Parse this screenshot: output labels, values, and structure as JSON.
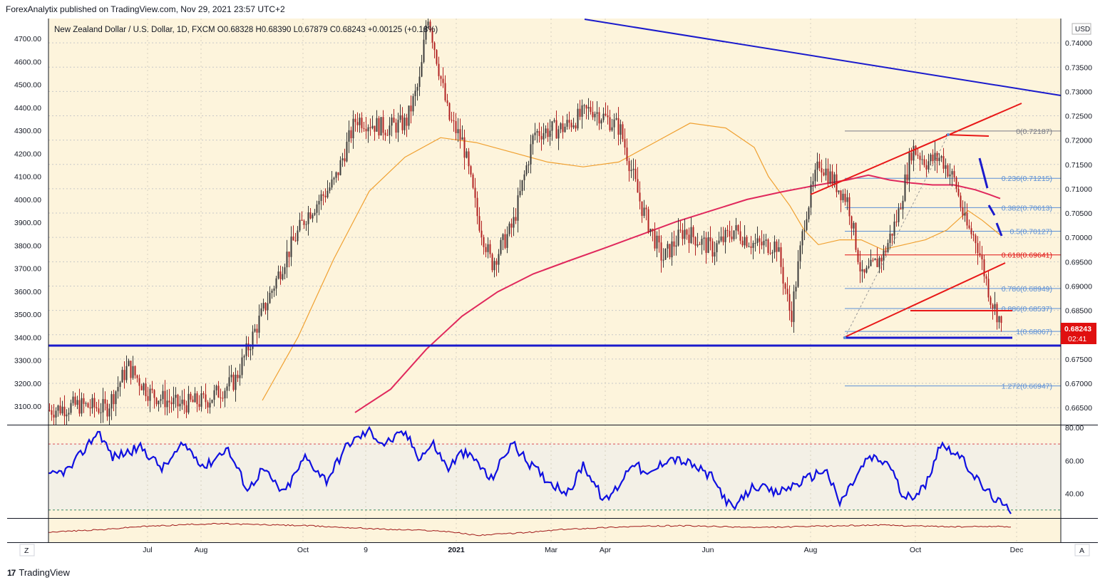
{
  "header": {
    "published": "ForexAnalytix published on TradingView.com, Nov 29, 2021 23:57 UTC+2",
    "instrument_line": "New Zealand Dollar / U.S. Dollar, 1D, FXCM  O0.68328  H0.68390  L0.67879  C0.68243  +0.00125 (+0.18%)"
  },
  "footer": {
    "brand": "TradingView",
    "logo": "17"
  },
  "colors": {
    "background": "#fdf4dc",
    "candle_up": "#3a3a3a",
    "candle_down": "#b22222",
    "trendline_blue": "#1a1acc",
    "channel_red": "#e81818",
    "ma_short": "#f0a030",
    "ma_long": "#e0285c",
    "fib_line": "#5b8fd6",
    "rsi_line": "#1010e0",
    "price_tag": "#e01010"
  },
  "chart_data": [
    {
      "type": "candlestick",
      "title": "New Zealand Dollar / U.S. Dollar, 1D, FXCM",
      "ohlc": {
        "open": 0.68328,
        "high": 0.6839,
        "low": 0.67879,
        "close": 0.68243,
        "change": "+0.00125 (+0.18%)"
      },
      "current_price": "0.68243",
      "countdown": "02:41",
      "currency": "USD",
      "right_axis_ticks": [
        "0.74000",
        "0.73500",
        "0.73000",
        "0.72500",
        "0.72000",
        "0.71500",
        "0.71000",
        "0.70500",
        "0.70000",
        "0.69500",
        "0.69000",
        "0.68500",
        "0.68000",
        "0.67500",
        "0.67000",
        "0.66500"
      ],
      "left_axis_ticks": [
        "4700.00",
        "4600.00",
        "4500.00",
        "4400.00",
        "4300.00",
        "4200.00",
        "4100.00",
        "4000.00",
        "3900.00",
        "3800.00",
        "3700.00",
        "3600.00",
        "3500.00",
        "3400.00",
        "3300.00",
        "3200.00",
        "3100.00"
      ],
      "x_axis_ticks": [
        "Jul",
        "Aug",
        "Oct",
        "9",
        "2021",
        "Mar",
        "Apr",
        "Jun",
        "Aug",
        "Oct",
        "Dec"
      ],
      "ylim": [
        0.6615,
        0.745
      ],
      "price_path_keypoints": [
        [
          0,
          0.6645
        ],
        [
          40,
          0.6655
        ],
        [
          80,
          0.6648
        ],
        [
          110,
          0.6735
        ],
        [
          140,
          0.668
        ],
        [
          180,
          0.6655
        ],
        [
          220,
          0.6665
        ],
        [
          260,
          0.6705
        ],
        [
          290,
          0.6815
        ],
        [
          330,
          0.6955
        ],
        [
          360,
          0.7045
        ],
        [
          400,
          0.7115
        ],
        [
          430,
          0.7245
        ],
        [
          470,
          0.7225
        ],
        [
          500,
          0.7235
        ],
        [
          520,
          0.7325
        ],
        [
          530,
          0.7465
        ],
        [
          560,
          0.7245
        ],
        [
          580,
          0.7195
        ],
        [
          600,
          0.7045
        ],
        [
          620,
          0.6945
        ],
        [
          650,
          0.7025
        ],
        [
          680,
          0.7215
        ],
        [
          720,
          0.7225
        ],
        [
          760,
          0.7265
        ],
        [
          800,
          0.7225
        ],
        [
          830,
          0.7065
        ],
        [
          860,
          0.6955
        ],
        [
          890,
          0.7015
        ],
        [
          930,
          0.6975
        ],
        [
          960,
          0.7015
        ],
        [
          990,
          0.6985
        ],
        [
          1020,
          0.6985
        ],
        [
          1040,
          0.6835
        ],
        [
          1060,
          0.7045
        ],
        [
          1080,
          0.7155
        ],
        [
          1100,
          0.7115
        ],
        [
          1120,
          0.7075
        ],
        [
          1140,
          0.6915
        ],
        [
          1170,
          0.6965
        ],
        [
          1190,
          0.7045
        ],
        [
          1210,
          0.7185
        ],
        [
          1230,
          0.7155
        ],
        [
          1250,
          0.7165
        ],
        [
          1270,
          0.7115
        ],
        [
          1285,
          0.7025
        ],
        [
          1300,
          0.6995
        ],
        [
          1320,
          0.6875
        ],
        [
          1335,
          0.68243
        ]
      ],
      "ma_short_keypoints": [
        [
          300,
          0.6665
        ],
        [
          350,
          0.6795
        ],
        [
          400,
          0.6955
        ],
        [
          450,
          0.7095
        ],
        [
          500,
          0.7165
        ],
        [
          550,
          0.7205
        ],
        [
          600,
          0.7195
        ],
        [
          650,
          0.7175
        ],
        [
          700,
          0.7155
        ],
        [
          750,
          0.7145
        ],
        [
          800,
          0.7155
        ],
        [
          850,
          0.7195
        ],
        [
          900,
          0.7235
        ],
        [
          950,
          0.7225
        ],
        [
          990,
          0.7185
        ],
        [
          1010,
          0.7125
        ],
        [
          1040,
          0.7065
        ],
        [
          1060,
          0.7015
        ],
        [
          1080,
          0.6985
        ],
        [
          1110,
          0.6995
        ],
        [
          1140,
          0.6995
        ],
        [
          1170,
          0.6975
        ],
        [
          1200,
          0.6985
        ],
        [
          1230,
          0.6995
        ],
        [
          1260,
          0.7015
        ],
        [
          1290,
          0.7055
        ],
        [
          1310,
          0.7035
        ],
        [
          1335,
          0.7005
        ]
      ],
      "ma_long_keypoints": [
        [
          430,
          0.664
        ],
        [
          480,
          0.6688
        ],
        [
          530,
          0.677
        ],
        [
          580,
          0.6838
        ],
        [
          630,
          0.6888
        ],
        [
          680,
          0.6925
        ],
        [
          730,
          0.6952
        ],
        [
          780,
          0.6978
        ],
        [
          830,
          0.7005
        ],
        [
          880,
          0.7032
        ],
        [
          930,
          0.7055
        ],
        [
          980,
          0.7078
        ],
        [
          1030,
          0.7094
        ],
        [
          1080,
          0.7108
        ],
        [
          1120,
          0.7118
        ],
        [
          1150,
          0.7128
        ],
        [
          1180,
          0.7118
        ],
        [
          1210,
          0.7112
        ],
        [
          1240,
          0.7108
        ],
        [
          1270,
          0.7108
        ],
        [
          1300,
          0.7098
        ],
        [
          1320,
          0.7088
        ],
        [
          1335,
          0.708
        ]
      ],
      "fibonacci": [
        {
          "label": "0(0.72187)",
          "value": 0.72187,
          "color": "#787b86"
        },
        {
          "label": "0.236(0.71215)",
          "value": 0.71215,
          "color": "#5b8fd6"
        },
        {
          "label": "0.382(0.70613)",
          "value": 0.70613,
          "color": "#5b8fd6"
        },
        {
          "label": "0.5(0.70127)",
          "value": 0.70127,
          "color": "#5b8fd6"
        },
        {
          "label": "0.618(0.69641)",
          "value": 0.69641,
          "color": "#e01010"
        },
        {
          "label": "0.786(0.68949)",
          "value": 0.68949,
          "color": "#5b8fd6"
        },
        {
          "label": "0.886(0.68537)",
          "value": 0.68537,
          "color": "#5b8fd6"
        },
        {
          "label": "1(0.68067)",
          "value": 0.68067,
          "color": "#5b8fd6"
        },
        {
          "label": "1.272(0.66947)",
          "value": 0.66947,
          "color": "#5b8fd6"
        }
      ],
      "horizontal_support": 0.6795
    },
    {
      "type": "line",
      "name": "RSI",
      "ticks": [
        "80.00",
        "60.00",
        "40.00"
      ],
      "ylim": [
        26,
        80
      ],
      "upper_band": 70,
      "lower_band": 30,
      "rsi_keypoints": [
        [
          0,
          50
        ],
        [
          30,
          55
        ],
        [
          70,
          78
        ],
        [
          90,
          62
        ],
        [
          130,
          68
        ],
        [
          160,
          55
        ],
        [
          190,
          70
        ],
        [
          220,
          56
        ],
        [
          250,
          68
        ],
        [
          280,
          42
        ],
        [
          300,
          55
        ],
        [
          330,
          40
        ],
        [
          360,
          62
        ],
        [
          390,
          48
        ],
        [
          420,
          70
        ],
        [
          450,
          78
        ],
        [
          470,
          70
        ],
        [
          500,
          77
        ],
        [
          520,
          62
        ],
        [
          540,
          70
        ],
        [
          560,
          55
        ],
        [
          580,
          65
        ],
        [
          600,
          60
        ],
        [
          620,
          48
        ],
        [
          650,
          71
        ],
        [
          670,
          60
        ],
        [
          700,
          48
        ],
        [
          730,
          40
        ],
        [
          750,
          58
        ],
        [
          780,
          35
        ],
        [
          800,
          45
        ],
        [
          820,
          60
        ],
        [
          840,
          50
        ],
        [
          870,
          62
        ],
        [
          900,
          58
        ],
        [
          930,
          50
        ],
        [
          960,
          30
        ],
        [
          990,
          45
        ],
        [
          1020,
          40
        ],
        [
          1060,
          48
        ],
        [
          1090,
          55
        ],
        [
          1110,
          34
        ],
        [
          1150,
          62
        ],
        [
          1180,
          58
        ],
        [
          1200,
          36
        ],
        [
          1230,
          44
        ],
        [
          1250,
          70
        ],
        [
          1270,
          66
        ],
        [
          1290,
          56
        ],
        [
          1310,
          44
        ],
        [
          1325,
          38
        ],
        [
          1340,
          32
        ],
        [
          1350,
          30
        ],
        [
          1360,
          32
        ]
      ],
      "volatility_keypoints": [
        [
          0,
          12
        ],
        [
          40,
          14
        ],
        [
          80,
          16
        ],
        [
          120,
          20
        ],
        [
          160,
          22
        ],
        [
          200,
          24
        ],
        [
          240,
          25
        ],
        [
          280,
          24
        ],
        [
          320,
          23
        ],
        [
          360,
          22
        ],
        [
          400,
          20
        ],
        [
          440,
          18
        ],
        [
          480,
          16
        ],
        [
          520,
          15
        ],
        [
          540,
          14
        ],
        [
          560,
          13
        ],
        [
          580,
          10
        ],
        [
          600,
          7
        ],
        [
          620,
          8
        ],
        [
          650,
          10
        ],
        [
          680,
          12
        ],
        [
          700,
          14
        ],
        [
          720,
          16
        ],
        [
          760,
          18
        ],
        [
          800,
          20
        ],
        [
          840,
          21
        ],
        [
          880,
          22
        ],
        [
          920,
          21
        ],
        [
          960,
          20
        ],
        [
          1000,
          19
        ],
        [
          1040,
          20
        ],
        [
          1080,
          21
        ],
        [
          1120,
          22
        ],
        [
          1160,
          23
        ],
        [
          1200,
          22
        ],
        [
          1240,
          21
        ],
        [
          1280,
          20
        ],
        [
          1320,
          21
        ],
        [
          1350,
          20
        ]
      ]
    }
  ],
  "ui": {
    "left_button": "Z",
    "right_button": "A"
  }
}
